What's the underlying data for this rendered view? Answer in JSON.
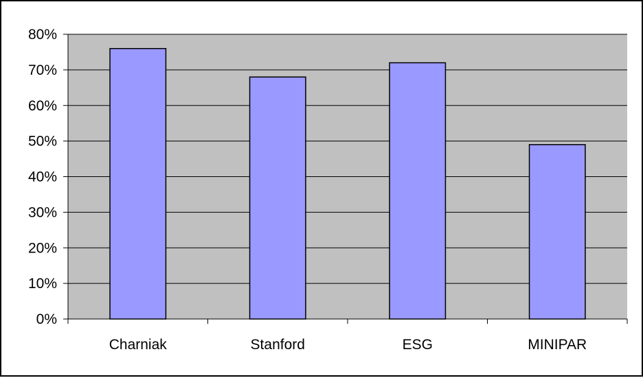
{
  "chart_data": {
    "type": "bar",
    "title": "",
    "xlabel": "",
    "ylabel": "",
    "categories": [
      "Charniak",
      "Stanford",
      "ESG",
      "MINIPAR"
    ],
    "values": [
      0.76,
      0.68,
      0.72,
      0.49
    ],
    "ylim": [
      0,
      0.8
    ],
    "yticks": [
      0,
      0.1,
      0.2,
      0.3,
      0.4,
      0.5,
      0.6,
      0.7,
      0.8
    ],
    "ytick_labels": [
      "0%",
      "10%",
      "20%",
      "30%",
      "40%",
      "50%",
      "60%",
      "70%",
      "80%"
    ],
    "grid": true,
    "legend": "none",
    "colors": {
      "bar_fill": "#9999ff",
      "bar_stroke": "#000000",
      "plot_background": "#c0c0c0",
      "gridline": "#000000"
    }
  }
}
